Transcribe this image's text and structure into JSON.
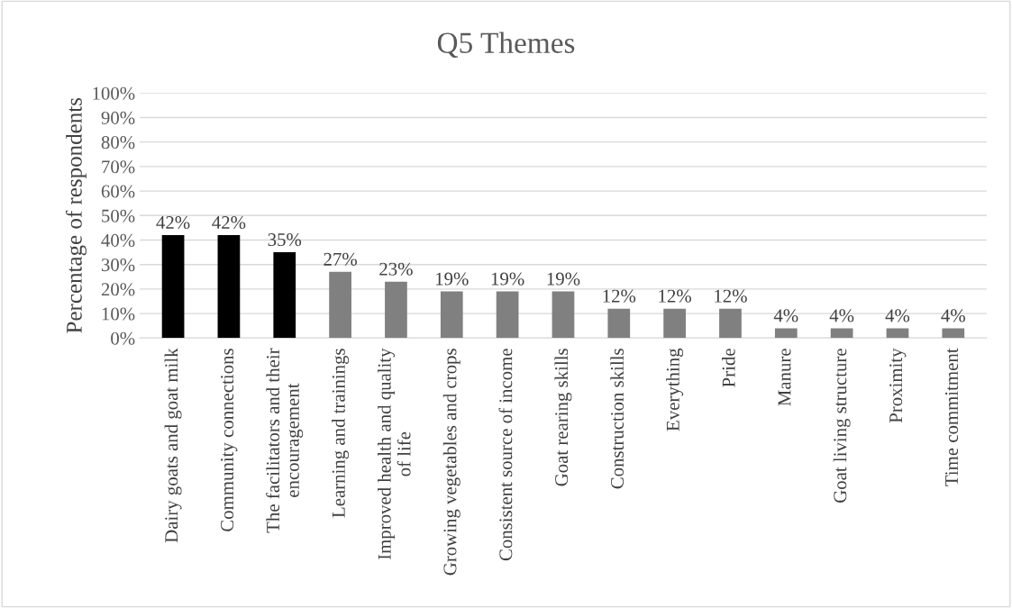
{
  "chart_data": {
    "type": "bar",
    "title": "Q5 Themes",
    "ylabel": "Percentage of respondents",
    "categories": [
      "Dairy goats and goat milk",
      "Community connections",
      "The facilitators and their encouragement",
      "Learning and trainings",
      "Improved health and quality of life",
      "Growing vegetables and crops",
      "Consistent source of income",
      "Goat rearing skills",
      "Construction skills",
      "Everything",
      "Pride",
      "Manure",
      "Goat living structure",
      "Proximity",
      "Time commitment"
    ],
    "values": [
      42,
      42,
      35,
      27,
      23,
      19,
      19,
      19,
      12,
      12,
      12,
      4,
      4,
      4,
      4
    ],
    "colors": [
      "#000000",
      "#000000",
      "#000000",
      "#808080",
      "#808080",
      "#808080",
      "#808080",
      "#808080",
      "#808080",
      "#808080",
      "#808080",
      "#808080",
      "#808080",
      "#808080",
      "#808080"
    ],
    "value_labels": [
      "42%",
      "42%",
      "35%",
      "27%",
      "23%",
      "19%",
      "19%",
      "19%",
      "12%",
      "12%",
      "12%",
      "4%",
      "4%",
      "4%",
      "4%"
    ],
    "ylim": [
      0,
      100
    ],
    "yticks": [
      {
        "value": 0,
        "label": "0%"
      },
      {
        "value": 10,
        "label": "10%"
      },
      {
        "value": 20,
        "label": "20%"
      },
      {
        "value": 30,
        "label": "30%"
      },
      {
        "value": 40,
        "label": "40%"
      },
      {
        "value": 50,
        "label": "50%"
      },
      {
        "value": 60,
        "label": "60%"
      },
      {
        "value": 70,
        "label": "70%"
      },
      {
        "value": 80,
        "label": "80%"
      },
      {
        "value": 90,
        "label": "90%"
      },
      {
        "value": 100,
        "label": "100%"
      }
    ],
    "grid": "y",
    "legend": false
  }
}
